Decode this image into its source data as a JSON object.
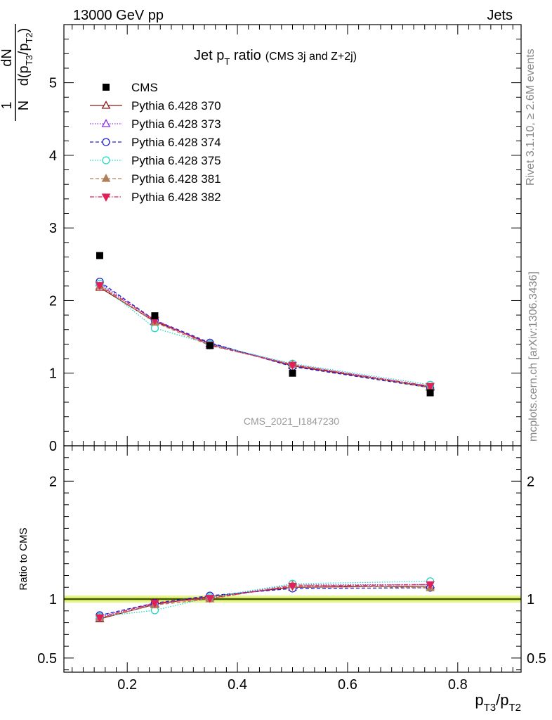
{
  "header": {
    "left": "13000 GeV pp",
    "right": "Jets"
  },
  "side_text": {
    "rivet": "Rivet 3.1.10, ≥ 2.6M events",
    "mcplots": "mcplots.cern.ch [arXiv:1306.3436]"
  },
  "watermark": "CMS_2021_I1847230",
  "ratio_ylabel": "Ratio to CMS",
  "chart_data": {
    "type": "line",
    "title": {
      "main": "Jet p",
      "sub": "T",
      "rest": " ratio",
      "small": "(CMS 3j and Z+2j)"
    },
    "ylabel": {
      "num": "dN",
      "one": "1",
      "N": "N",
      "den_d": "d(p",
      "den_s1": "T3",
      "den_mid": "/p",
      "den_s2": "T2",
      "den_close": ")"
    },
    "xlabel": {
      "p1": "p",
      "s1": "T3",
      "mid": "/p",
      "s2": "T2"
    },
    "x": [
      0.15,
      0.25,
      0.35,
      0.5,
      0.75
    ],
    "xlim": [
      0.085,
      0.915
    ],
    "ylim": [
      0,
      5.8
    ],
    "ratio_ylim": [
      0.38,
      2.3
    ],
    "x_ticks": [
      "0.2",
      "0.4",
      "0.6",
      "0.8"
    ],
    "y_ticks": [
      "0",
      "1",
      "2",
      "3",
      "4",
      "5"
    ],
    "ratio_ticks": [
      "0.5",
      "1",
      "2"
    ],
    "band": {
      "outer": 0.03,
      "inner": 0.012,
      "outer_color": "#e7f58a",
      "inner_color": "#b4d82e"
    },
    "data": {
      "name": "CMS",
      "values": [
        2.62,
        1.79,
        1.38,
        1.0,
        0.73
      ],
      "color": "#000000"
    },
    "series": [
      {
        "name": "Pythia 6.428 370",
        "color": "#8b1a1a",
        "marker": "triangle-open",
        "dash": "",
        "values": [
          2.18,
          1.71,
          1.41,
          1.1,
          0.81
        ]
      },
      {
        "name": "Pythia 6.428 373",
        "color": "#8a2be2",
        "marker": "triangle-open",
        "dash": "1.5,2",
        "values": [
          2.24,
          1.72,
          1.4,
          1.12,
          0.82
        ]
      },
      {
        "name": "Pythia 6.428 374",
        "color": "#2020d0",
        "marker": "circle-open",
        "dash": "5,3",
        "values": [
          2.26,
          1.73,
          1.42,
          1.09,
          0.8
        ]
      },
      {
        "name": "Pythia 6.428 375",
        "color": "#20d8c8",
        "marker": "circle-open",
        "dash": "1.5,2",
        "values": [
          2.23,
          1.62,
          1.4,
          1.13,
          0.84
        ]
      },
      {
        "name": "Pythia 6.428 381",
        "color": "#b0805a",
        "marker": "triangle-filled",
        "dash": "5,3",
        "values": [
          2.2,
          1.7,
          1.38,
          1.12,
          0.8
        ]
      },
      {
        "name": "Pythia 6.428 382",
        "color": "#e0205a",
        "marker": "triangle-down-filled",
        "dash": "6,2,1.5,2",
        "values": [
          2.21,
          1.73,
          1.39,
          1.11,
          0.82
        ]
      }
    ]
  }
}
